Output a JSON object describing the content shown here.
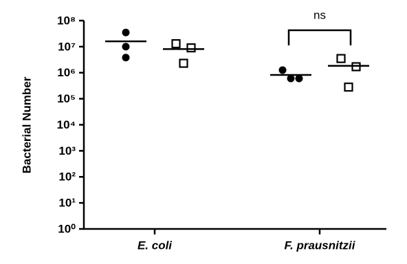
{
  "chart_data": {
    "type": "scatter",
    "y_label": "Bacterial Number",
    "categories": [
      "E. coli",
      "F. prausnitzii"
    ],
    "yscale": "log",
    "ylim": [
      1,
      100000000
    ],
    "yticks": [
      {
        "value": 1,
        "label": "10⁰"
      },
      {
        "value": 10,
        "label": "10¹"
      },
      {
        "value": 100,
        "label": "10²"
      },
      {
        "value": 1000,
        "label": "10³"
      },
      {
        "value": 10000,
        "label": "10⁴"
      },
      {
        "value": 100000,
        "label": "10⁵"
      },
      {
        "value": 1000000,
        "label": "10⁶"
      },
      {
        "value": 10000000,
        "label": "10⁷"
      },
      {
        "value": 100000000,
        "label": "10⁸"
      }
    ],
    "series": [
      {
        "marker": "circle",
        "color": "#000000",
        "values": [
          [
            35000000,
            10000000,
            3800000
          ],
          [
            1260000,
            600000,
            600000
          ]
        ],
        "means": [
          16000000,
          820000
        ]
      },
      {
        "marker": "open-square",
        "color": "#000000",
        "values": [
          [
            13000000,
            9000000,
            2300000
          ],
          [
            3500000,
            1700000,
            280000
          ]
        ],
        "means": [
          8100000,
          1830000
        ]
      }
    ],
    "annotation": "ns"
  }
}
